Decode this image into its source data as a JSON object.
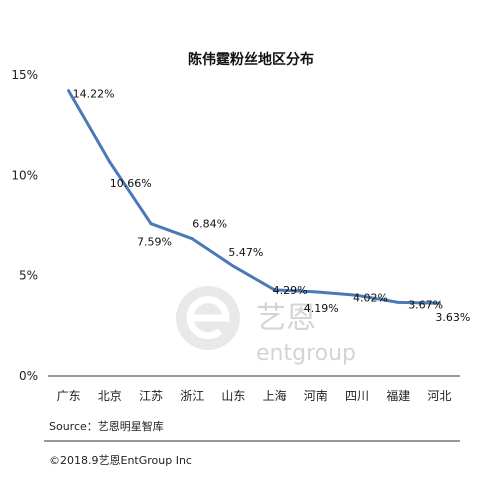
{
  "chart_data": {
    "type": "line",
    "title": "陈伟霆粉丝地区分布",
    "categories": [
      "广东",
      "北京",
      "江苏",
      "浙江",
      "山东",
      "上海",
      "河南",
      "四川",
      "福建",
      "河北"
    ],
    "series": [
      {
        "values": [
          14.22,
          10.66,
          7.59,
          6.84,
          5.47,
          4.29,
          4.19,
          4.02,
          3.67,
          3.63
        ],
        "color": "#4a7ab5"
      }
    ],
    "data_labels": [
      "14.22%",
      "10.66%",
      "7.59%",
      "6.84%",
      "5.47%",
      "4.29%",
      "4.19%",
      "4.02%",
      "3.67%",
      "3.63%"
    ],
    "ylim": [
      0,
      15
    ],
    "yticks": [
      0,
      5,
      10,
      15
    ],
    "ytick_labels": [
      "0%",
      "5%",
      "10%",
      "15%"
    ],
    "xlabel": "",
    "ylabel": "",
    "grid": false,
    "legend": "none"
  },
  "source": "Source：艺恩明星智库",
  "footer": "©2018.9艺恩EntGroup Inc",
  "watermark": {
    "brand_cn": "艺恩",
    "brand_en": "entgroup"
  },
  "colors": {
    "line": "#4a7ab5",
    "axis": "#333333",
    "watermark": "#d4d4d4"
  }
}
